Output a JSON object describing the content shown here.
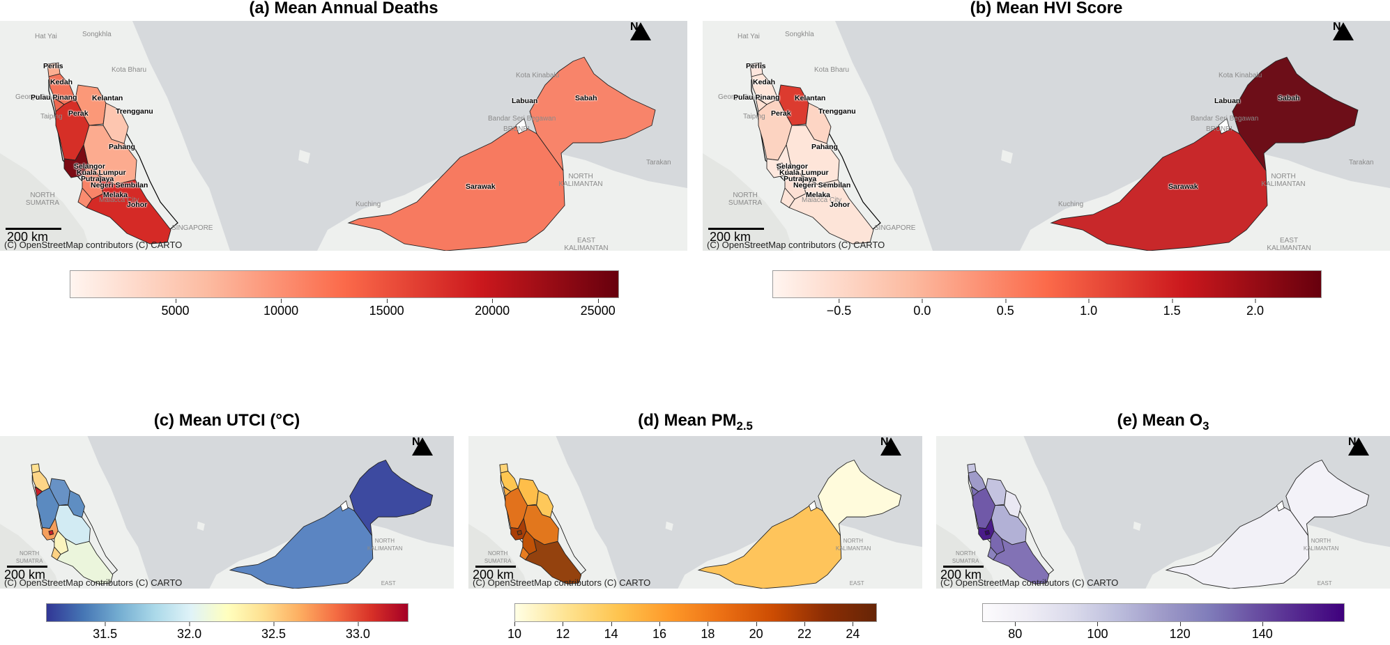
{
  "attribution": "(C) OpenStreetMap contributors (C) CARTO",
  "scale_label": "200 km",
  "north_label": "N",
  "background_labels": {
    "hat_yai": "Hat Yai",
    "songkhla": "Songkhla",
    "kota_bharu": "Kota Bharu",
    "kota_kinabalu": "Kota Kinabalu",
    "bandar_seri_begawan": "Bandar Seri Begawan",
    "tarakan": "Tarakan",
    "north_sumatra": "NORTH SUMATRA",
    "north_kalimantan": "NORTH KALIMANTAN",
    "east_kalimantan": "EAST KALIMANTAN",
    "malacca_city": "Malacca City",
    "singapore": "SINGAPORE",
    "georgetown": "George Town",
    "taiping": "Taiping",
    "brunei": "BRUNEI",
    "kuching": "Kuching"
  },
  "state_labels": {
    "perlis": "Perlis",
    "kedah": "Kedah",
    "pulau_pinang": "Pulau Pinang",
    "kelantan": "Kelantan",
    "perak": "Perak",
    "trengganu": "Trengganu",
    "pahang": "Pahang",
    "selangor": "Selangor",
    "kuala_lumpur": "Kuala Lumpur",
    "putrajaya": "Putrajaya",
    "negeri_sembilan": "Negeri Sembilan",
    "melaka": "Melaka",
    "johor": "Johor",
    "labuan": "Labuan",
    "sabah": "Sabah",
    "sarawak": "Sarawak"
  },
  "panels": {
    "a": {
      "title": "(a) Mean Annual Deaths",
      "colormap": [
        "#fff5f0",
        "#fcbba1",
        "#fb6a4a",
        "#cb181d",
        "#67000d"
      ],
      "range": [
        0,
        26000
      ],
      "ticks": [
        "5000",
        "10000",
        "15000",
        "20000",
        "25000"
      ],
      "tick_values": [
        5000,
        10000,
        15000,
        20000,
        25000
      ],
      "fills": {
        "perlis": "#fcae91",
        "kedah": "#f4745a",
        "pulau_pinang": "#f06a52",
        "perak": "#d62f27",
        "kelantan": "#fb9878",
        "trengganu": "#fdc6b0",
        "pahang": "#fcab8f",
        "selangor": "#7b0b14",
        "negeri_sembilan": "#f88468",
        "melaka": "#fa8c70",
        "johor": "#d52a26",
        "kuala_lumpur": "#d3222a",
        "sabah": "#f8846a",
        "sarawak": "#f77a60"
      }
    },
    "b": {
      "title": "(b) Mean HVI Score",
      "colormap": [
        "#fff5f0",
        "#fcbba1",
        "#fb6a4a",
        "#cb181d",
        "#67000d"
      ],
      "range": [
        -0.9,
        2.4
      ],
      "ticks": [
        "−0.5",
        "0.0",
        "0.5",
        "1.0",
        "1.5",
        "2.0"
      ],
      "tick_values": [
        -0.5,
        0.0,
        0.5,
        1.0,
        1.5,
        2.0
      ],
      "fills": {
        "perlis": "#fde5dc",
        "kedah": "#fee5d9",
        "pulau_pinang": "#fee0d2",
        "perak": "#fcd3c1",
        "kelantan": "#dc3b2f",
        "trengganu": "#fdd5c4",
        "pahang": "#fee5d9",
        "selangor": "#fee8de",
        "negeri_sembilan": "#fde0d4",
        "melaka": "#fee4d8",
        "johor": "#fde4d8",
        "kuala_lumpur": "#fff0ea",
        "sabah": "#6d0e18",
        "sarawak": "#c8282a"
      }
    },
    "c": {
      "title": "(c) Mean UTCI (°C)",
      "colormap": [
        "#313695",
        "#4575b4",
        "#74add1",
        "#abd9e9",
        "#e0f3f8",
        "#ffffbf",
        "#fee090",
        "#fdae61",
        "#f46d43",
        "#d73027",
        "#a50026"
      ],
      "range": [
        31.15,
        33.3
      ],
      "ticks": [
        "31.5",
        "32.0",
        "32.5",
        "33.0"
      ],
      "tick_values": [
        31.5,
        32.0,
        32.5,
        33.0
      ],
      "fills": {
        "perlis": "#fee090",
        "kedah": "#fdd587",
        "pulau_pinang": "#c71e27",
        "perak": "#5b8ac0",
        "kelantan": "#6892c5",
        "trengganu": "#5f8ec2",
        "pahang": "#d2ebf3",
        "selangor": "#f59f5c",
        "negeri_sembilan": "#fbf4be",
        "melaka": "#fdd284",
        "johor": "#ebf5dc",
        "kuala_lumpur": "#c82127",
        "sabah": "#3d4aa0",
        "sarawak": "#5b85c2"
      }
    },
    "d": {
      "title": "(d) Mean PM",
      "title_sub": "2.5",
      "colormap": [
        "#ffffe5",
        "#fee391",
        "#fec44f",
        "#fe9929",
        "#ec7014",
        "#cc4c02",
        "#8c2d04",
        "#662506"
      ],
      "range": [
        10,
        25
      ],
      "ticks": [
        "10",
        "12",
        "14",
        "16",
        "18",
        "20",
        "22",
        "24"
      ],
      "tick_values": [
        10,
        12,
        14,
        16,
        18,
        20,
        22,
        24
      ],
      "fills": {
        "perlis": "#fed376",
        "kedah": "#fec651",
        "pulau_pinang": "#fdab3f",
        "perak": "#e2721c",
        "kelantan": "#febe4a",
        "trengganu": "#fec85a",
        "pahang": "#e2771d",
        "selangor": "#a93e07",
        "negeri_sembilan": "#c05206",
        "melaka": "#e87d20",
        "johor": "#94420e",
        "kuala_lumpur": "#8f3b07",
        "sabah": "#fffbdc",
        "sarawak": "#fec45b"
      }
    },
    "e": {
      "title": "(e) Mean O",
      "title_sub": "3",
      "colormap": [
        "#fcfbfd",
        "#efedf5",
        "#dadaeb",
        "#bcbddc",
        "#9e9ac8",
        "#807dba",
        "#6a51a3",
        "#54278f",
        "#3f007d"
      ],
      "range": [
        72,
        160
      ],
      "ticks": [
        "80",
        "100",
        "120",
        "140"
      ],
      "tick_values": [
        80,
        100,
        120,
        140
      ],
      "fills": {
        "perlis": "#c7c6e2",
        "kedah": "#9f9bc9",
        "pulau_pinang": "#7c6eb4",
        "perak": "#7059a8",
        "kelantan": "#c4c3e0",
        "trengganu": "#eae8f3",
        "pahang": "#b2b1d6",
        "selangor": "#4a1c89",
        "negeri_sembilan": "#7a68b0",
        "melaka": "#8b82bd",
        "johor": "#8272b5",
        "kuala_lumpur": "#36066f",
        "sabah": "#f3f2f8",
        "sarawak": "#f2f1f7"
      }
    }
  }
}
